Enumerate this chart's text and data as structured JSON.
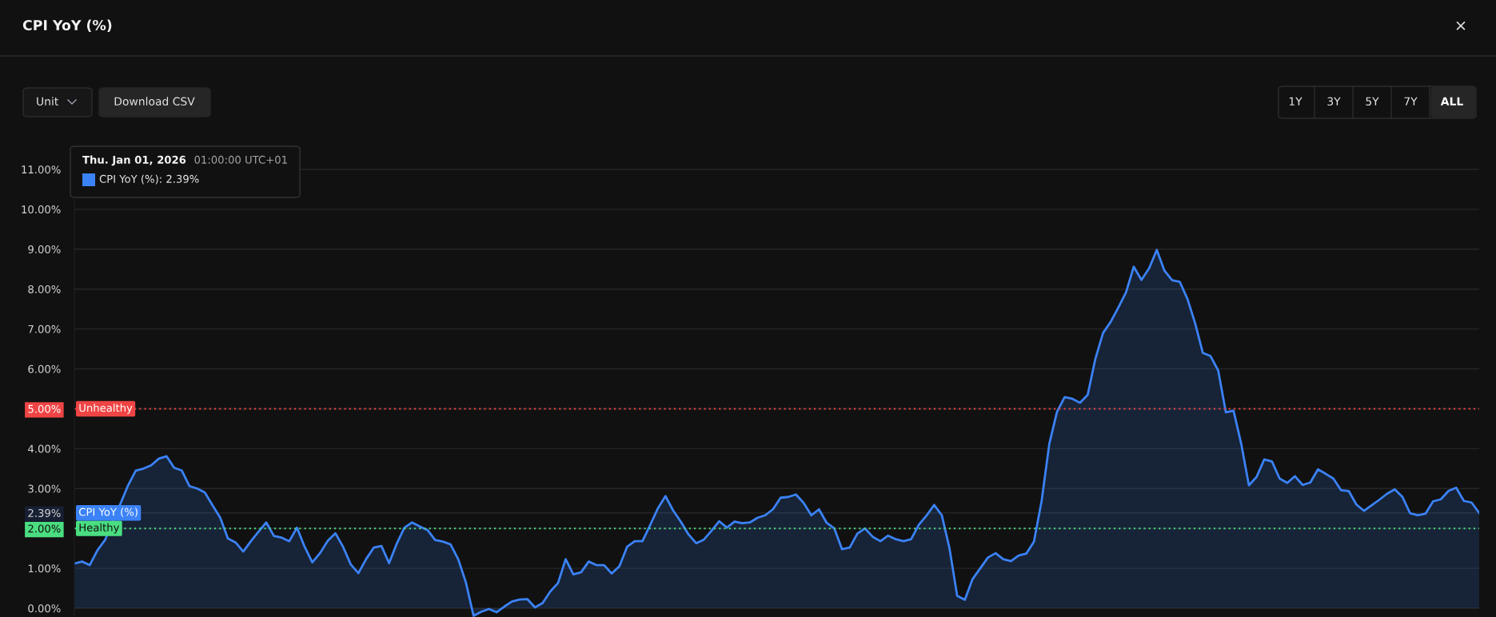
{
  "chart_data": {
    "type": "area",
    "title": "CPI YoY (%)",
    "categories": [
      null,
      null,
      null,
      null,
      null,
      null,
      null,
      null,
      null,
      null,
      null,
      null,
      null,
      null,
      null,
      null,
      null,
      null,
      null,
      null,
      null,
      null,
      null,
      null,
      null,
      null,
      null,
      null,
      null,
      null,
      null,
      null,
      null,
      null,
      null,
      null,
      null,
      null,
      null,
      null,
      null,
      null,
      null,
      null,
      null,
      null,
      null,
      null,
      null,
      null,
      null,
      null,
      null,
      null,
      null,
      null,
      null,
      null,
      null,
      null,
      null,
      null,
      null,
      null,
      null,
      null,
      null,
      null,
      null,
      null,
      null,
      null,
      null,
      null,
      null,
      null,
      null,
      null,
      null,
      null,
      null,
      null,
      null,
      null,
      null,
      null,
      null,
      null,
      null,
      null,
      null,
      null,
      null,
      null,
      null,
      null,
      null,
      null,
      null,
      null,
      null,
      null,
      null,
      null,
      null,
      null,
      null,
      null,
      null,
      null,
      null,
      null,
      null,
      null,
      null,
      null,
      null,
      null,
      null,
      null,
      null,
      null,
      null,
      null,
      null,
      null,
      null,
      null,
      null,
      null,
      null,
      null,
      null,
      null,
      null,
      null,
      null,
      null,
      null,
      null,
      null,
      null,
      null,
      null,
      null,
      null,
      null,
      null,
      null,
      null,
      null,
      null,
      null,
      null,
      null,
      null,
      null,
      null,
      null,
      null,
      null,
      null,
      null,
      null,
      null,
      null,
      null,
      null,
      null,
      null,
      null,
      null,
      null,
      null,
      null,
      null,
      null,
      null,
      null,
      null,
      null,
      null,
      null,
      null
    ],
    "series": [
      {
        "name": "CPI YoY (%)",
        "color": "#3b82f6",
        "values": [
          1.12,
          1.17,
          1.08,
          1.45,
          1.71,
          2.19,
          2.62,
          3.08,
          3.45,
          3.5,
          3.58,
          3.75,
          3.81,
          3.52,
          3.45,
          3.06,
          3.0,
          2.9,
          2.58,
          2.27,
          1.75,
          1.65,
          1.42,
          1.68,
          1.92,
          2.15,
          1.81,
          1.77,
          1.68,
          2.02,
          1.54,
          1.15,
          1.38,
          1.69,
          1.88,
          1.54,
          1.1,
          0.88,
          1.23,
          1.52,
          1.56,
          1.13,
          1.62,
          2.02,
          2.15,
          2.05,
          1.96,
          1.71,
          1.67,
          1.6,
          1.23,
          0.65,
          -0.19,
          -0.09,
          -0.02,
          -0.1,
          0.04,
          0.17,
          0.22,
          0.23,
          0.02,
          0.13,
          0.42,
          0.63,
          1.23,
          0.85,
          0.9,
          1.17,
          1.08,
          1.08,
          0.87,
          1.05,
          1.54,
          1.68,
          1.68,
          2.08,
          2.5,
          2.81,
          2.45,
          2.17,
          1.85,
          1.63,
          1.72,
          1.94,
          2.18,
          2.02,
          2.17,
          2.13,
          2.15,
          2.27,
          2.33,
          2.48,
          2.77,
          2.79,
          2.85,
          2.64,
          2.33,
          2.48,
          2.14,
          2.0,
          1.48,
          1.52,
          1.87,
          2.0,
          1.79,
          1.68,
          1.82,
          1.73,
          1.68,
          1.73,
          2.09,
          2.32,
          2.59,
          2.33,
          1.5,
          0.31,
          0.21,
          0.73,
          1.0,
          1.27,
          1.38,
          1.23,
          1.18,
          1.32,
          1.37,
          1.67,
          2.69,
          4.12,
          4.92,
          5.29,
          5.25,
          5.15,
          5.35,
          6.25,
          6.9,
          7.18,
          7.54,
          7.92,
          8.56,
          8.23,
          8.52,
          8.98,
          8.46,
          8.22,
          8.18,
          7.75,
          7.14,
          6.4,
          6.32,
          5.96,
          4.91,
          4.95,
          4.12,
          3.08,
          3.29,
          3.73,
          3.68,
          3.25,
          3.14,
          3.31,
          3.09,
          3.15,
          3.48,
          3.37,
          3.25,
          2.96,
          2.94,
          2.6,
          2.44,
          2.58,
          2.72,
          2.87,
          2.98,
          2.79,
          2.38,
          2.33,
          2.37,
          2.68,
          2.73,
          2.94,
          3.02,
          2.69,
          2.65,
          2.39
        ]
      }
    ],
    "ylim": [
      -0.22,
      11.6
    ],
    "yticks": [
      {
        "value": 0,
        "label": "0.00%"
      },
      {
        "value": 1,
        "label": "1.00%"
      },
      {
        "value": 2,
        "label": "2.00%"
      },
      {
        "value": 2.39,
        "label": "2.39%"
      },
      {
        "value": 3,
        "label": "3.00%"
      },
      {
        "value": 4,
        "label": "4.00%"
      },
      {
        "value": 5,
        "label": "5.00%"
      },
      {
        "value": 6,
        "label": "6.00%"
      },
      {
        "value": 7,
        "label": "7.00%"
      },
      {
        "value": 8,
        "label": "8.00%"
      },
      {
        "value": 9,
        "label": "9.00%"
      },
      {
        "value": 10,
        "label": "10.00%"
      },
      {
        "value": 11,
        "label": "11.00%"
      }
    ],
    "grid": "y",
    "ref_lines": [
      {
        "axis": "y",
        "value": 5,
        "label": "Unhealthy",
        "color": "#ef4444",
        "line_style": "dotted"
      },
      {
        "axis": "y",
        "value": 2,
        "label": "Healthy",
        "color": "#4ade80",
        "line_style": "dotted"
      }
    ],
    "annotations": [
      "Unit",
      "Download CSV",
      "1Y",
      "3Y",
      "5Y",
      "7Y",
      "ALL",
      "×",
      "Thu. Jan 01, 2026",
      "01:00:00 UTC+01",
      "CPI YoY (%): 2.39%"
    ]
  }
}
